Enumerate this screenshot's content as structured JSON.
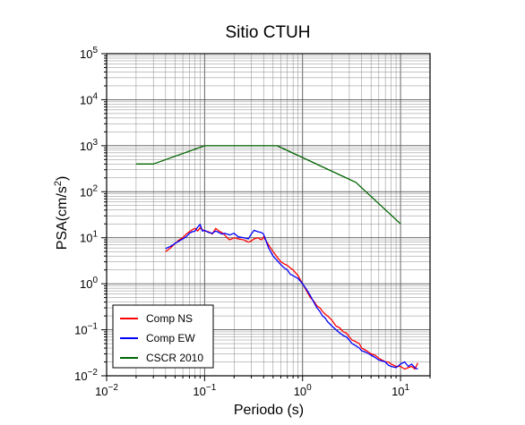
{
  "chart_data": {
    "type": "line",
    "title": "Sitio CTUH",
    "xlabel": "Periodo (s)",
    "ylabel": {
      "base": "PSA(cm/s",
      "sup": "2",
      "end": ")"
    },
    "xscale": "log",
    "yscale": "log",
    "xlim": [
      0.01,
      20
    ],
    "ylim": [
      0.01,
      100000
    ],
    "grid": true,
    "legend_position": "bottom-left",
    "x_ticks": [
      {
        "base": "10",
        "exp": "−2",
        "value": 0.01
      },
      {
        "base": "10",
        "exp": "−1",
        "value": 0.1
      },
      {
        "base": "10",
        "exp": "0",
        "value": 1
      },
      {
        "base": "10",
        "exp": "1",
        "value": 10
      }
    ],
    "y_ticks": [
      {
        "base": "10",
        "exp": "−2",
        "value": 0.01
      },
      {
        "base": "10",
        "exp": "−1",
        "value": 0.1
      },
      {
        "base": "10",
        "exp": "0",
        "value": 1
      },
      {
        "base": "10",
        "exp": "1",
        "value": 10
      },
      {
        "base": "10",
        "exp": "2",
        "value": 100
      },
      {
        "base": "10",
        "exp": "3",
        "value": 1000
      },
      {
        "base": "10",
        "exp": "4",
        "value": 10000
      },
      {
        "base": "10",
        "exp": "5",
        "value": 100000
      }
    ],
    "series": [
      {
        "name": "Comp NS",
        "color": "#ff0000",
        "x": [
          0.04,
          0.045,
          0.05,
          0.055,
          0.06,
          0.065,
          0.07,
          0.075,
          0.08,
          0.085,
          0.09,
          0.095,
          0.1,
          0.11,
          0.12,
          0.13,
          0.14,
          0.15,
          0.16,
          0.17,
          0.18,
          0.2,
          0.22,
          0.25,
          0.28,
          0.3,
          0.32,
          0.35,
          0.38,
          0.4,
          0.45,
          0.5,
          0.55,
          0.6,
          0.65,
          0.7,
          0.75,
          0.8,
          0.9,
          1.0,
          1.1,
          1.2,
          1.3,
          1.4,
          1.5,
          1.6,
          1.7,
          1.8,
          2.0,
          2.2,
          2.4,
          2.6,
          2.8,
          3.0,
          3.2,
          3.5,
          3.8,
          4.0,
          4.5,
          5.0,
          5.5,
          6.0,
          6.5,
          7.0,
          7.5,
          8.0,
          9.0,
          10,
          11,
          12,
          13,
          14,
          15
        ],
        "y": [
          5.0,
          6.0,
          7.5,
          9.0,
          10.0,
          12.0,
          13.5,
          15.0,
          16.0,
          14.0,
          16.5,
          15.0,
          14.0,
          13.5,
          12.0,
          16.0,
          14.0,
          13.0,
          11.5,
          10.0,
          9.0,
          10.0,
          9.5,
          9.0,
          8.0,
          8.5,
          9.5,
          10.0,
          9.0,
          10.5,
          7.0,
          5.0,
          3.8,
          3.0,
          2.7,
          2.5,
          2.2,
          2.0,
          1.5,
          1.0,
          0.7,
          0.5,
          0.42,
          0.33,
          0.3,
          0.25,
          0.22,
          0.2,
          0.16,
          0.12,
          0.11,
          0.09,
          0.085,
          0.07,
          0.06,
          0.055,
          0.05,
          0.04,
          0.035,
          0.03,
          0.028,
          0.024,
          0.022,
          0.02,
          0.02,
          0.018,
          0.016,
          0.016,
          0.014,
          0.015,
          0.016,
          0.014,
          0.019
        ]
      },
      {
        "name": "Comp EW",
        "color": "#0000ff",
        "x": [
          0.04,
          0.045,
          0.05,
          0.055,
          0.06,
          0.065,
          0.07,
          0.075,
          0.08,
          0.085,
          0.09,
          0.095,
          0.1,
          0.11,
          0.12,
          0.13,
          0.14,
          0.15,
          0.16,
          0.17,
          0.18,
          0.2,
          0.22,
          0.25,
          0.28,
          0.3,
          0.32,
          0.35,
          0.38,
          0.4,
          0.45,
          0.5,
          0.55,
          0.6,
          0.65,
          0.7,
          0.75,
          0.8,
          0.9,
          1.0,
          1.1,
          1.2,
          1.3,
          1.4,
          1.5,
          1.6,
          1.7,
          1.8,
          2.0,
          2.2,
          2.4,
          2.6,
          2.8,
          3.0,
          3.2,
          3.5,
          3.8,
          4.0,
          4.5,
          5.0,
          5.5,
          6.0,
          6.5,
          7.0,
          7.5,
          8.0,
          9.0,
          10,
          11,
          12,
          13,
          14,
          15
        ],
        "y": [
          5.8,
          6.5,
          7.5,
          8.5,
          9.5,
          10.5,
          12.5,
          13.5,
          14.0,
          17.0,
          19.5,
          14.0,
          14.5,
          13.0,
          12.5,
          14.0,
          13.0,
          12.0,
          12.5,
          12.0,
          11.5,
          12.5,
          10.5,
          10.0,
          9.5,
          12.0,
          14.5,
          13.5,
          13.0,
          12.0,
          6.0,
          4.0,
          3.2,
          2.6,
          2.2,
          2.0,
          1.6,
          1.5,
          1.3,
          1.0,
          0.75,
          0.55,
          0.4,
          0.3,
          0.25,
          0.2,
          0.18,
          0.15,
          0.12,
          0.1,
          0.085,
          0.075,
          0.07,
          0.06,
          0.05,
          0.045,
          0.04,
          0.035,
          0.032,
          0.028,
          0.025,
          0.022,
          0.021,
          0.02,
          0.017,
          0.016,
          0.015,
          0.018,
          0.02,
          0.016,
          0.018,
          0.015,
          0.014
        ]
      },
      {
        "name": "CSCR 2010",
        "color": "#006400",
        "x": [
          0.02,
          0.03,
          0.1,
          0.55,
          3.5,
          10
        ],
        "y": [
          400,
          400,
          1000,
          1000,
          160,
          20
        ]
      }
    ]
  }
}
